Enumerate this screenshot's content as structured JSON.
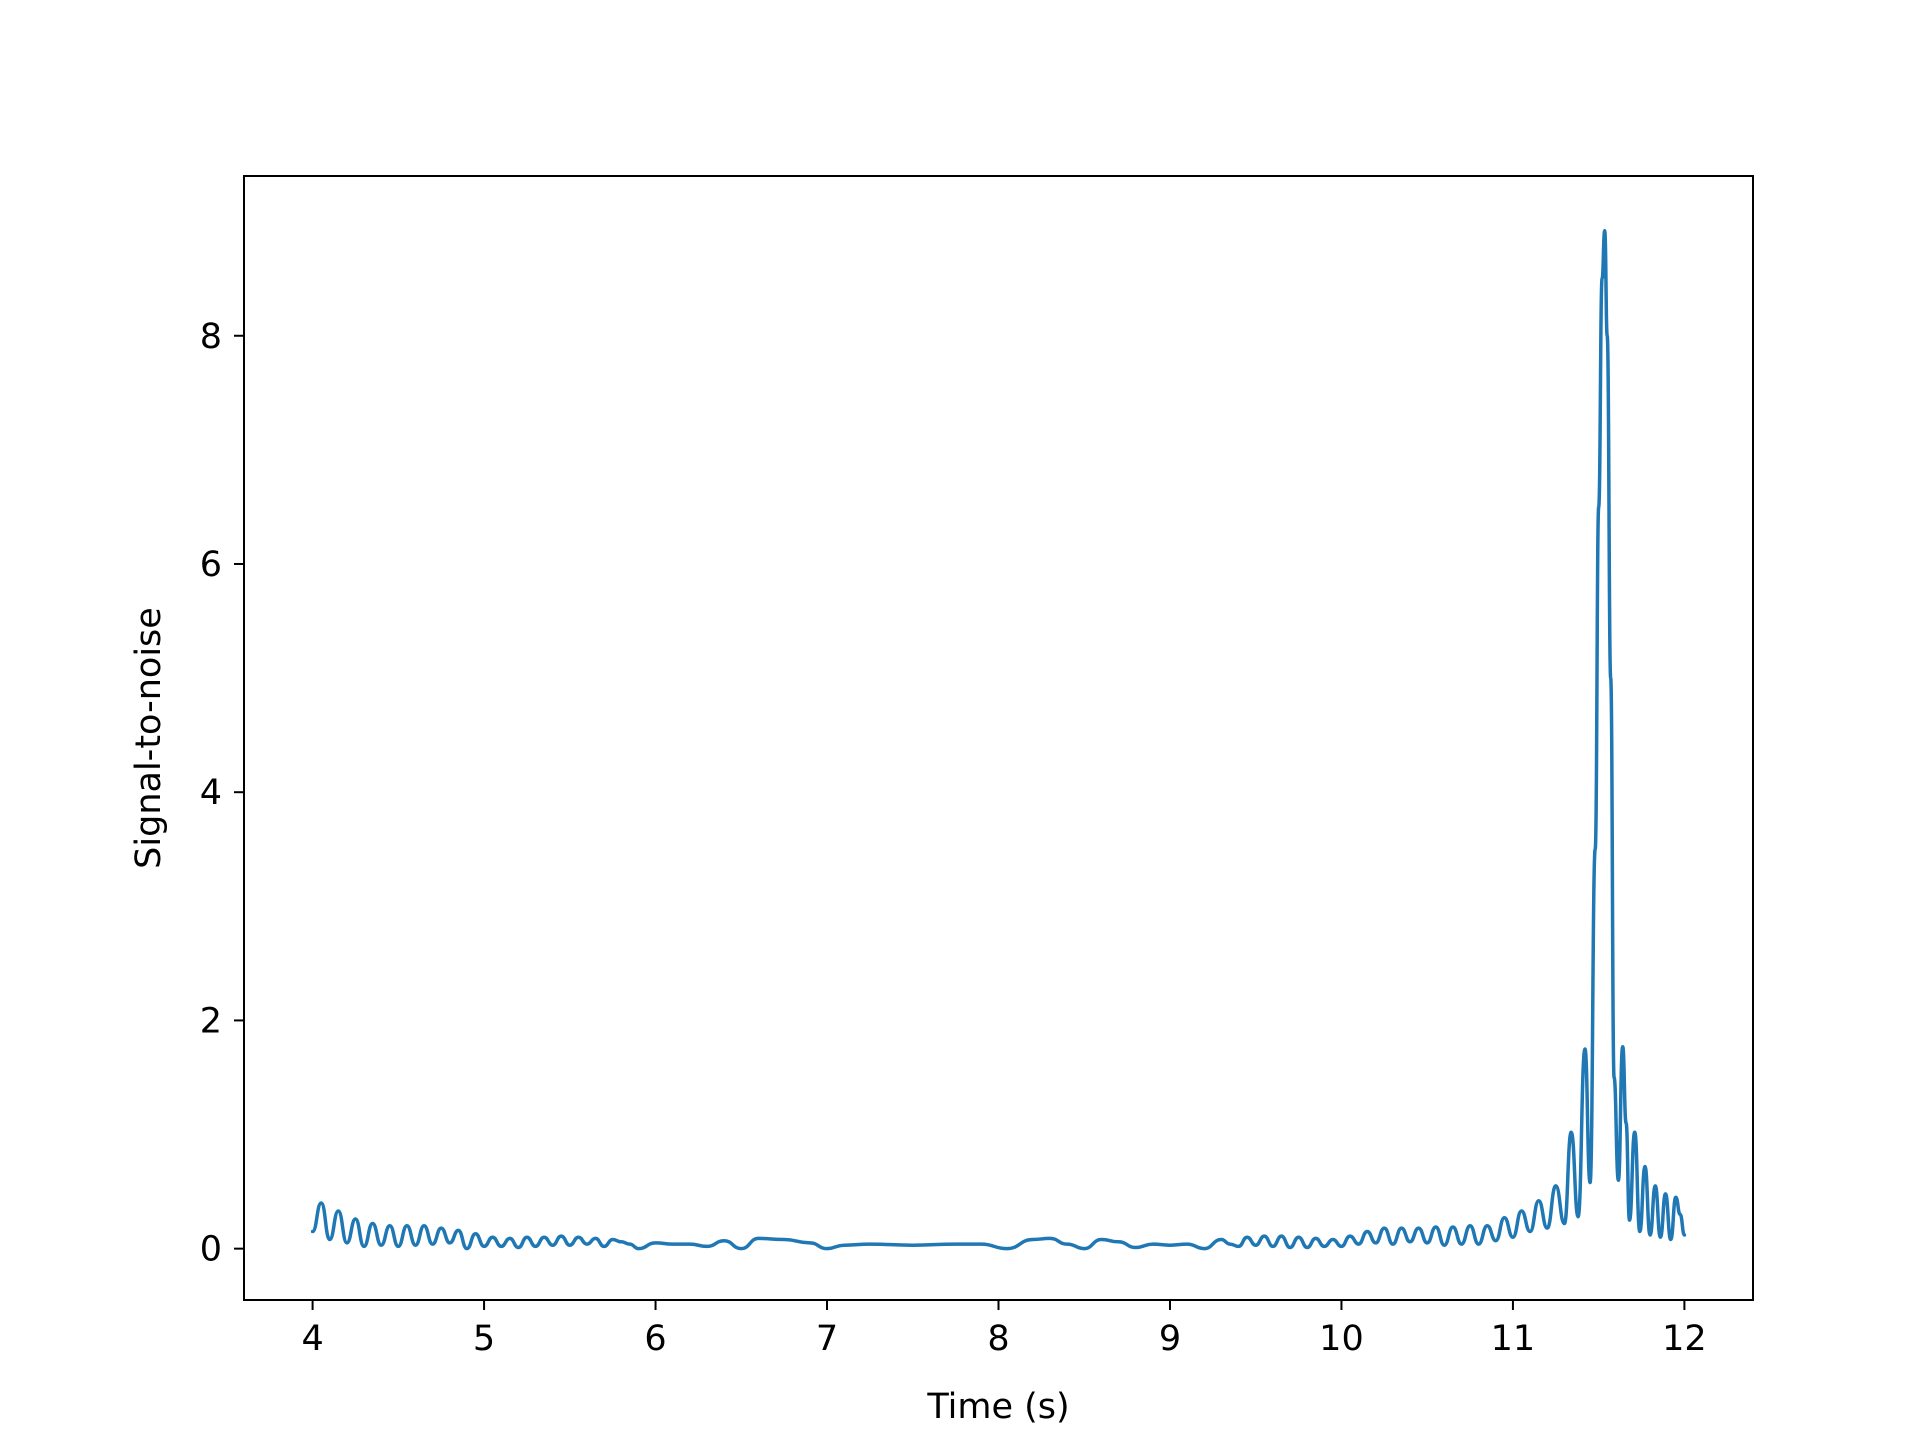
{
  "chart_data": {
    "type": "line",
    "title": "",
    "xlabel": "Time (s)",
    "ylabel": "Signal-to-noise",
    "xlim": [
      3.6,
      12.4
    ],
    "ylim": [
      -0.45,
      9.4
    ],
    "x_ticks": [
      4,
      5,
      6,
      7,
      8,
      9,
      10,
      11,
      12
    ],
    "x_tick_labels": [
      "4",
      "5",
      "6",
      "7",
      "8",
      "9",
      "10",
      "11",
      "12"
    ],
    "y_ticks": [
      0,
      2,
      4,
      6,
      8
    ],
    "y_tick_labels": [
      "0",
      "2",
      "4",
      "6",
      "8"
    ],
    "grid": false,
    "legend": "none",
    "series": [
      {
        "color": "#1f77b4",
        "x": [
          4.0,
          4.05,
          4.1,
          4.15,
          4.2,
          4.25,
          4.3,
          4.35,
          4.4,
          4.45,
          4.5,
          4.55,
          4.6,
          4.65,
          4.7,
          4.75,
          4.8,
          4.85,
          4.9,
          4.95,
          5.0,
          5.05,
          5.1,
          5.15,
          5.2,
          5.25,
          5.3,
          5.35,
          5.4,
          5.45,
          5.5,
          5.55,
          5.6,
          5.65,
          5.7,
          5.75,
          5.8,
          5.85,
          5.9,
          6.0,
          6.1,
          6.2,
          6.3,
          6.4,
          6.5,
          6.6,
          6.75,
          6.9,
          7.0,
          7.1,
          7.25,
          7.5,
          7.75,
          7.9,
          8.05,
          8.2,
          8.3,
          8.4,
          8.5,
          8.6,
          8.7,
          8.8,
          8.9,
          9.0,
          9.1,
          9.2,
          9.3,
          9.35,
          9.4,
          9.45,
          9.5,
          9.55,
          9.6,
          9.65,
          9.7,
          9.75,
          9.8,
          9.85,
          9.9,
          9.95,
          10.0,
          10.05,
          10.1,
          10.15,
          10.2,
          10.25,
          10.3,
          10.35,
          10.4,
          10.45,
          10.5,
          10.55,
          10.6,
          10.65,
          10.7,
          10.75,
          10.8,
          10.85,
          10.9,
          10.95,
          11.0,
          11.05,
          11.1,
          11.15,
          11.2,
          11.25,
          11.3,
          11.34,
          11.38,
          11.42,
          11.45,
          11.48,
          11.5,
          11.52,
          11.535,
          11.55,
          11.57,
          11.59,
          11.615,
          11.64,
          11.66,
          11.68,
          11.71,
          11.74,
          11.77,
          11.8,
          11.83,
          11.86,
          11.89,
          11.92,
          11.95,
          11.975,
          12.0
        ],
        "y": [
          0.15,
          0.4,
          0.08,
          0.33,
          0.05,
          0.26,
          0.02,
          0.22,
          0.03,
          0.2,
          0.02,
          0.2,
          0.03,
          0.2,
          0.04,
          0.18,
          0.05,
          0.16,
          0.0,
          0.13,
          0.02,
          0.1,
          0.02,
          0.09,
          0.01,
          0.1,
          0.02,
          0.1,
          0.03,
          0.11,
          0.03,
          0.1,
          0.04,
          0.09,
          0.02,
          0.08,
          0.06,
          0.04,
          0.0,
          0.05,
          0.04,
          0.04,
          0.02,
          0.07,
          0.0,
          0.09,
          0.08,
          0.05,
          0.0,
          0.03,
          0.04,
          0.03,
          0.04,
          0.04,
          0.0,
          0.08,
          0.09,
          0.04,
          0.0,
          0.08,
          0.06,
          0.01,
          0.04,
          0.03,
          0.04,
          0.0,
          0.08,
          0.04,
          0.02,
          0.1,
          0.03,
          0.11,
          0.02,
          0.11,
          0.01,
          0.1,
          0.01,
          0.09,
          0.02,
          0.08,
          0.02,
          0.11,
          0.04,
          0.15,
          0.05,
          0.18,
          0.04,
          0.18,
          0.06,
          0.18,
          0.05,
          0.19,
          0.03,
          0.19,
          0.04,
          0.2,
          0.04,
          0.2,
          0.07,
          0.27,
          0.1,
          0.33,
          0.15,
          0.42,
          0.18,
          0.55,
          0.22,
          1.02,
          0.28,
          1.75,
          0.58,
          3.5,
          6.5,
          8.5,
          8.92,
          8.0,
          5.0,
          1.5,
          0.6,
          1.77,
          1.1,
          0.25,
          1.02,
          0.15,
          0.72,
          0.12,
          0.55,
          0.1,
          0.48,
          0.08,
          0.45,
          0.3,
          0.12
        ]
      }
    ]
  }
}
